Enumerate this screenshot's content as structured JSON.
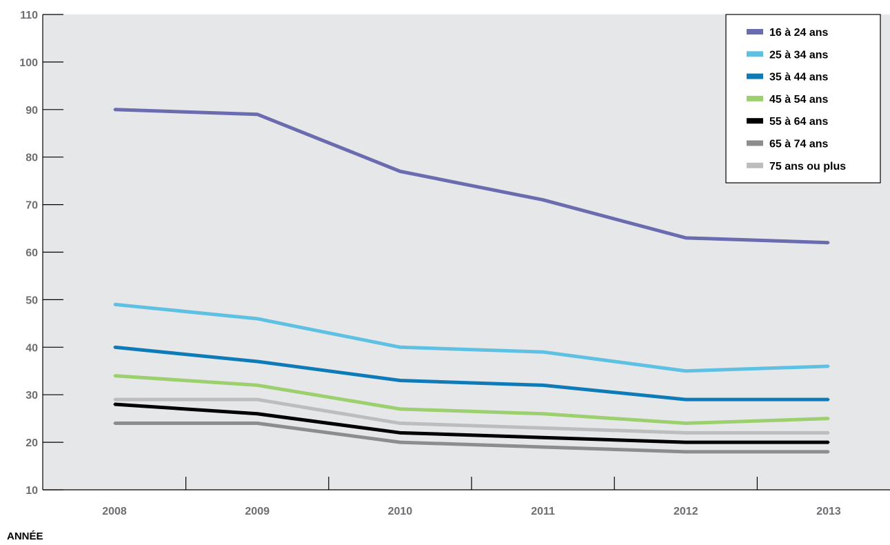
{
  "chart_data": {
    "type": "line",
    "xlabel": "ANNÉE",
    "ylabel": "",
    "categories": [
      "2008",
      "2009",
      "2010",
      "2011",
      "2012",
      "2013"
    ],
    "ylim": [
      10,
      110
    ],
    "yticks": [
      "10",
      "20",
      "30",
      "40",
      "50",
      "60",
      "70",
      "80",
      "90",
      "100",
      "110"
    ],
    "grid": false,
    "legend_position": "top-right",
    "series": [
      {
        "name": "16 à 24 ans",
        "color": "#6b6bb0",
        "values": [
          90,
          89,
          77,
          71,
          63,
          62
        ]
      },
      {
        "name": "25 à 34 ans",
        "color": "#5ec0e3",
        "values": [
          49,
          46,
          40,
          39,
          35,
          36
        ]
      },
      {
        "name": "35 à 44 ans",
        "color": "#0e7bb8",
        "values": [
          40,
          37,
          33,
          32,
          29,
          29
        ]
      },
      {
        "name": "45 à 54 ans",
        "color": "#9ccf6e",
        "values": [
          34,
          32,
          27,
          26,
          24,
          25
        ]
      },
      {
        "name": "55 à 64 ans",
        "color": "#000000",
        "values": [
          28,
          26,
          22,
          21,
          20,
          20
        ]
      },
      {
        "name": "65 à 74 ans",
        "color": "#8d8d8f",
        "values": [
          24,
          24,
          20,
          19,
          18,
          18
        ]
      },
      {
        "name": "75 ans ou plus",
        "color": "#bdbdbf",
        "values": [
          29,
          29,
          24,
          23,
          22,
          22
        ]
      }
    ],
    "plot_background": "#e6e7e8"
  }
}
